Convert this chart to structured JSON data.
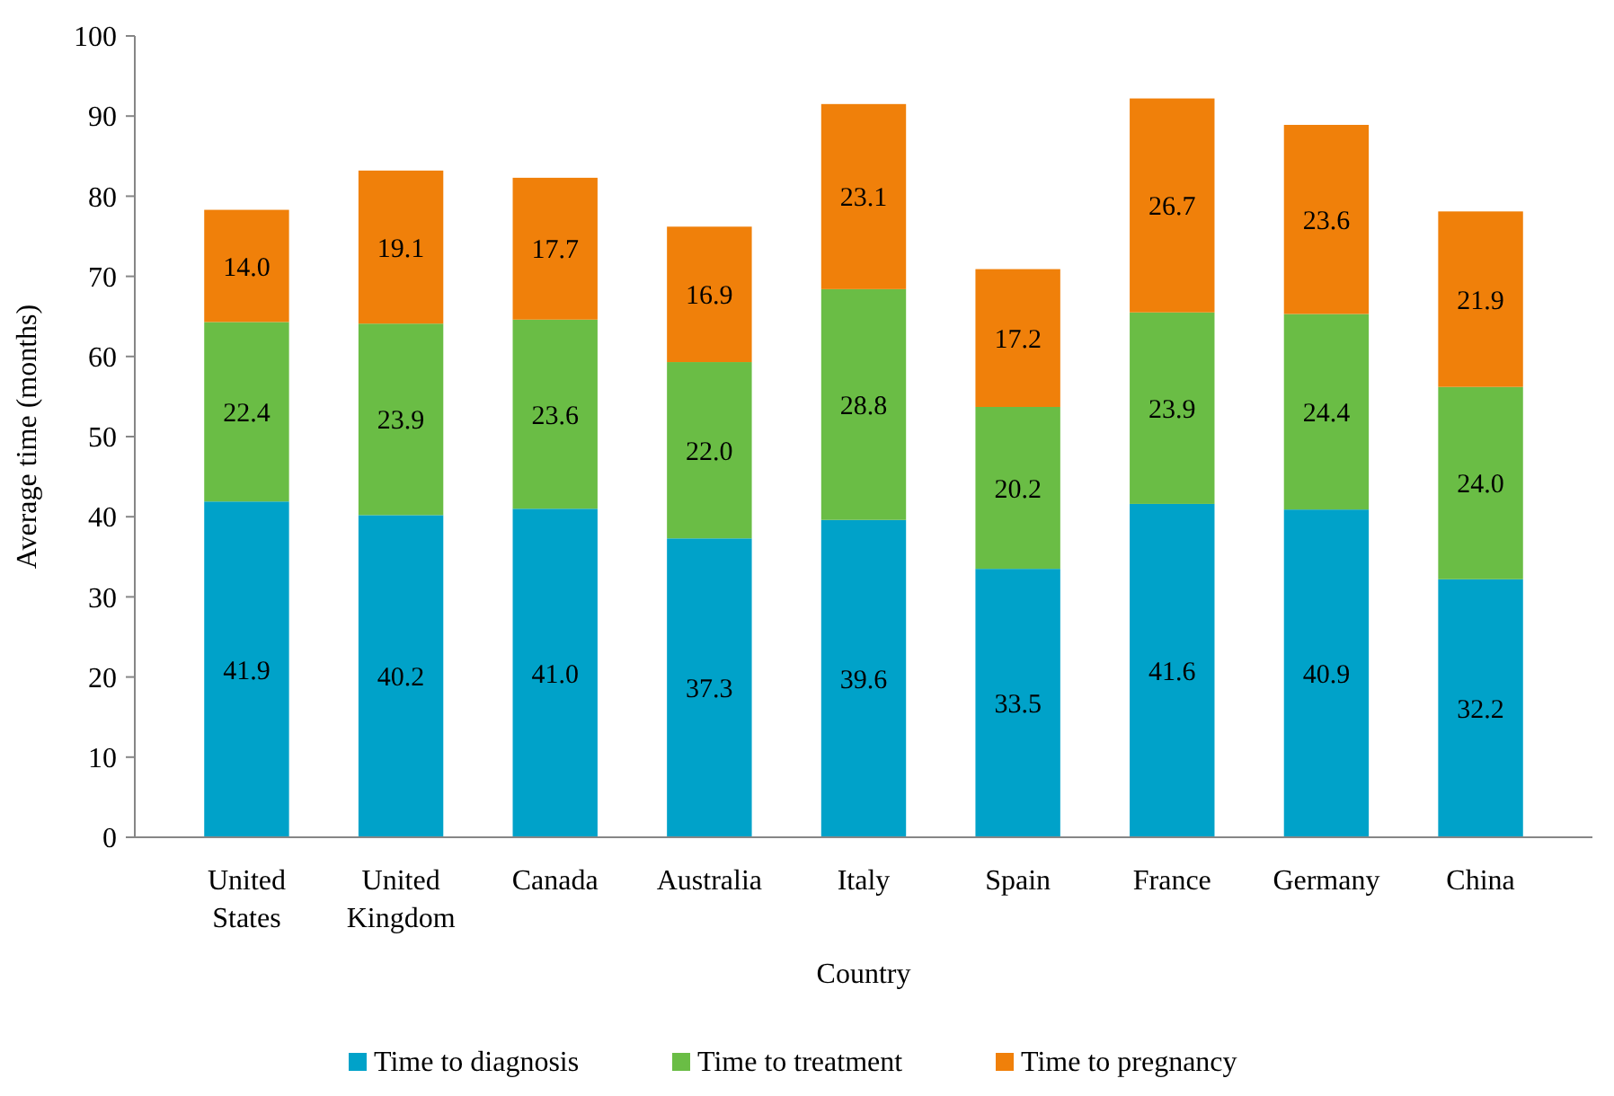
{
  "chart_data": {
    "type": "bar",
    "stacked": true,
    "xlabel": "Country",
    "ylabel": "Average time (months)",
    "categories": [
      "United States",
      "United Kingdom",
      "Canada",
      "Australia",
      "Italy",
      "Spain",
      "France",
      "Germany",
      "China"
    ],
    "series": [
      {
        "name": "Time to diagnosis",
        "color": "#00a2c9",
        "values": [
          41.9,
          40.2,
          41.0,
          37.3,
          39.6,
          33.5,
          41.6,
          40.9,
          32.2
        ],
        "value_labels": [
          "41.9",
          "40.2",
          "41.0",
          "37.3",
          "39.6",
          "33.5",
          "41.6",
          "40.9",
          "32.2"
        ]
      },
      {
        "name": "Time to treatment",
        "color": "#6abd45",
        "values": [
          22.4,
          23.9,
          23.6,
          22.0,
          28.8,
          20.2,
          23.9,
          24.4,
          24.0
        ],
        "value_labels": [
          "22.4",
          "23.9",
          "23.6",
          "22.0",
          "28.8",
          "20.2",
          "23.9",
          "24.4",
          "24.0"
        ]
      },
      {
        "name": "Time to pregnancy",
        "color": "#f0800a",
        "values": [
          14.0,
          19.1,
          17.7,
          16.9,
          23.1,
          17.2,
          26.7,
          23.6,
          21.9
        ],
        "value_labels": [
          "14.0",
          "19.1",
          "17.7",
          "16.9",
          "23.1",
          "17.2",
          "26.7",
          "23.6",
          "21.9"
        ]
      }
    ],
    "ylim": [
      0,
      100
    ],
    "yticks": [
      0,
      10,
      20,
      30,
      40,
      50,
      60,
      70,
      80,
      90,
      100
    ],
    "legend": "bottom"
  }
}
